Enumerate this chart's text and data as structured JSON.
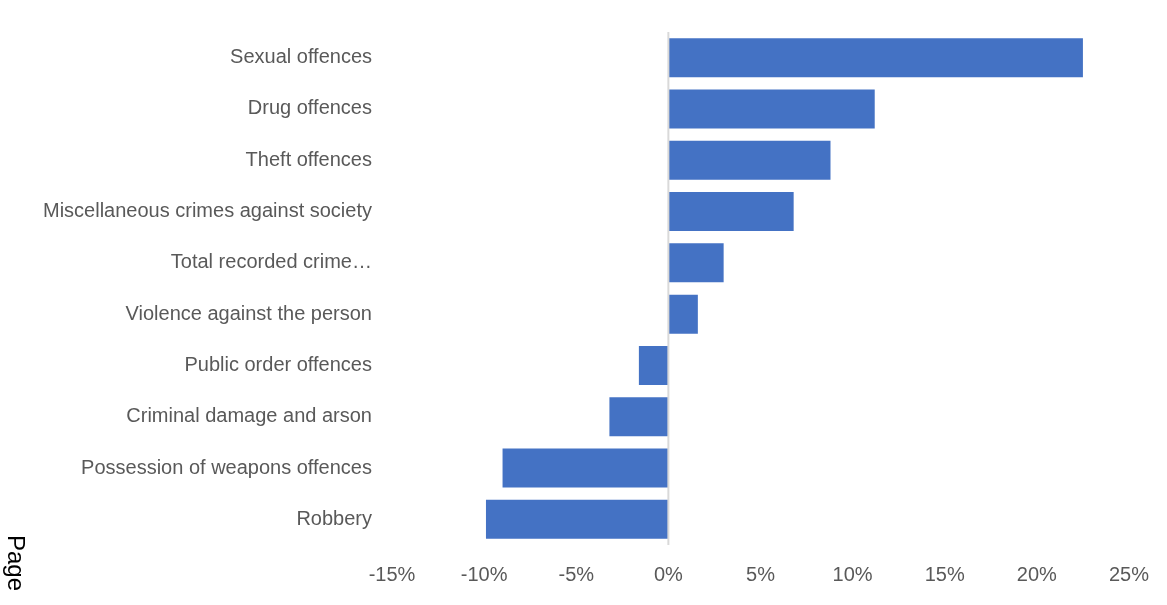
{
  "chart_data": {
    "type": "bar",
    "orientation": "horizontal",
    "categories": [
      "Sexual offences",
      "Drug offences",
      "Theft offences",
      "Miscellaneous crimes against society",
      "Total recorded crime…",
      "Violence against the person",
      "Public order offences",
      "Criminal damage and arson",
      "Possession of weapons offences",
      "Robbery"
    ],
    "values": [
      22.5,
      11.2,
      8.8,
      6.8,
      3.0,
      1.6,
      -1.6,
      -3.2,
      -9.0,
      -9.9
    ],
    "color": "#4472c4",
    "xlim": [
      -15,
      25
    ],
    "xticks": [
      {
        "value": -15,
        "label": "-15%"
      },
      {
        "value": -10,
        "label": "-10%"
      },
      {
        "value": -5,
        "label": "-5%"
      },
      {
        "value": 0,
        "label": "0%"
      },
      {
        "value": 5,
        "label": "5%"
      },
      {
        "value": 10,
        "label": "10%"
      },
      {
        "value": 15,
        "label": "15%"
      },
      {
        "value": 20,
        "label": "20%"
      },
      {
        "value": 25,
        "label": "25%"
      }
    ],
    "ref_lines": [
      {
        "axis": "x",
        "value": 0,
        "color": "#d9d9d9"
      }
    ],
    "legend": false,
    "annotations": [
      "Page"
    ]
  }
}
